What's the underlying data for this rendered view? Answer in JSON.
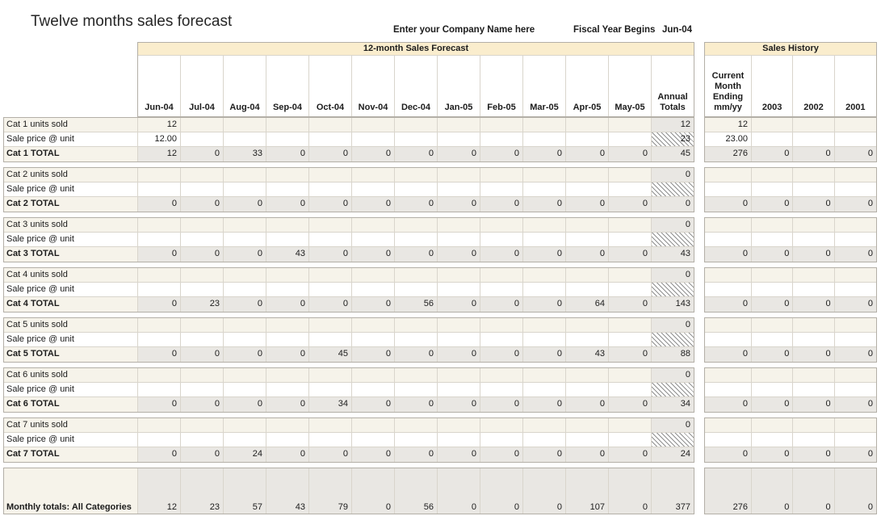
{
  "page": {
    "title": "Twelve months sales forecast"
  },
  "header": {
    "company_prompt": "Enter your Company Name here",
    "fiscal_label": "Fiscal Year Begins",
    "fiscal_value": "Jun-04"
  },
  "forecast": {
    "band_title": "12-month Sales Forecast",
    "months": [
      "Jun-04",
      "Jul-04",
      "Aug-04",
      "Sep-04",
      "Oct-04",
      "Nov-04",
      "Dec-04",
      "Jan-05",
      "Feb-05",
      "Mar-05",
      "Apr-05",
      "May-05"
    ],
    "annual_header": "Annual\nTotals"
  },
  "history": {
    "band_title": "Sales History",
    "col0_header": "Current\nMonth\nEnding\nmm/yy",
    "year_headers": [
      "2003",
      "2002",
      "2001"
    ]
  },
  "categories": [
    {
      "units_label": "Cat 1 units sold",
      "price_label": "Sale price @ unit",
      "total_label": "Cat 1 TOTAL",
      "units_months": [
        "12",
        "",
        "",
        "",
        "",
        "",
        "",
        "",
        "",
        "",
        "",
        ""
      ],
      "units_annual": "12",
      "price_months": [
        "12.00",
        "",
        "",
        "",
        "",
        "",
        "",
        "",
        "",
        "",
        "",
        ""
      ],
      "price_annual": "23",
      "total_months": [
        "12",
        "0",
        "33",
        "0",
        "0",
        "0",
        "0",
        "0",
        "0",
        "0",
        "0",
        "0"
      ],
      "total_annual": "45",
      "has_comment": true,
      "history_units": "12",
      "history_price": "23.00",
      "history_totals": [
        "276",
        "0",
        "0",
        "0"
      ]
    },
    {
      "units_label": "Cat 2 units sold",
      "price_label": "Sale price @ unit",
      "total_label": "Cat 2 TOTAL",
      "units_months": [
        "",
        "",
        "",
        "",
        "",
        "",
        "",
        "",
        "",
        "",
        "",
        ""
      ],
      "units_annual": "0",
      "price_months": [
        "",
        "",
        "",
        "",
        "",
        "",
        "",
        "",
        "",
        "",
        "",
        ""
      ],
      "price_annual": "",
      "total_months": [
        "0",
        "0",
        "0",
        "0",
        "0",
        "0",
        "0",
        "0",
        "0",
        "0",
        "0",
        "0"
      ],
      "total_annual": "0",
      "has_comment": false,
      "history_units": "",
      "history_price": "",
      "history_totals": [
        "0",
        "0",
        "0",
        "0"
      ]
    },
    {
      "units_label": "Cat 3 units sold",
      "price_label": "Sale price @ unit",
      "total_label": "Cat 3 TOTAL",
      "units_months": [
        "",
        "",
        "",
        "",
        "",
        "",
        "",
        "",
        "",
        "",
        "",
        ""
      ],
      "units_annual": "0",
      "price_months": [
        "",
        "",
        "",
        "",
        "",
        "",
        "",
        "",
        "",
        "",
        "",
        ""
      ],
      "price_annual": "",
      "total_months": [
        "0",
        "0",
        "0",
        "43",
        "0",
        "0",
        "0",
        "0",
        "0",
        "0",
        "0",
        "0"
      ],
      "total_annual": "43",
      "has_comment": false,
      "history_units": "",
      "history_price": "",
      "history_totals": [
        "0",
        "0",
        "0",
        "0"
      ]
    },
    {
      "units_label": "Cat 4 units sold",
      "price_label": "Sale price @ unit",
      "total_label": "Cat 4 TOTAL",
      "units_months": [
        "",
        "",
        "",
        "",
        "",
        "",
        "",
        "",
        "",
        "",
        "",
        ""
      ],
      "units_annual": "0",
      "price_months": [
        "",
        "",
        "",
        "",
        "",
        "",
        "",
        "",
        "",
        "",
        "",
        ""
      ],
      "price_annual": "",
      "total_months": [
        "0",
        "23",
        "0",
        "0",
        "0",
        "0",
        "56",
        "0",
        "0",
        "0",
        "64",
        "0"
      ],
      "total_annual": "143",
      "has_comment": false,
      "history_units": "",
      "history_price": "",
      "history_totals": [
        "0",
        "0",
        "0",
        "0"
      ]
    },
    {
      "units_label": "Cat 5 units sold",
      "price_label": "Sale price @ unit",
      "total_label": "Cat 5 TOTAL",
      "units_months": [
        "",
        "",
        "",
        "",
        "",
        "",
        "",
        "",
        "",
        "",
        "",
        ""
      ],
      "units_annual": "0",
      "price_months": [
        "",
        "",
        "",
        "",
        "",
        "",
        "",
        "",
        "",
        "",
        "",
        ""
      ],
      "price_annual": "",
      "total_months": [
        "0",
        "0",
        "0",
        "0",
        "45",
        "0",
        "0",
        "0",
        "0",
        "0",
        "43",
        "0"
      ],
      "total_annual": "88",
      "has_comment": false,
      "history_units": "",
      "history_price": "",
      "history_totals": [
        "0",
        "0",
        "0",
        "0"
      ]
    },
    {
      "units_label": "Cat 6 units sold",
      "price_label": "Sale price @ unit",
      "total_label": "Cat 6 TOTAL",
      "units_months": [
        "",
        "",
        "",
        "",
        "",
        "",
        "",
        "",
        "",
        "",
        "",
        ""
      ],
      "units_annual": "0",
      "price_months": [
        "",
        "",
        "",
        "",
        "",
        "",
        "",
        "",
        "",
        "",
        "",
        ""
      ],
      "price_annual": "",
      "total_months": [
        "0",
        "0",
        "0",
        "0",
        "34",
        "0",
        "0",
        "0",
        "0",
        "0",
        "0",
        "0"
      ],
      "total_annual": "34",
      "has_comment": false,
      "history_units": "",
      "history_price": "",
      "history_totals": [
        "0",
        "0",
        "0",
        "0"
      ]
    },
    {
      "units_label": "Cat 7 units sold",
      "price_label": "Sale price @ unit",
      "total_label": "Cat 7 TOTAL",
      "units_months": [
        "",
        "",
        "",
        "",
        "",
        "",
        "",
        "",
        "",
        "",
        "",
        ""
      ],
      "units_annual": "0",
      "price_months": [
        "",
        "",
        "",
        "",
        "",
        "",
        "",
        "",
        "",
        "",
        "",
        ""
      ],
      "price_annual": "",
      "total_months": [
        "0",
        "0",
        "24",
        "0",
        "0",
        "0",
        "0",
        "0",
        "0",
        "0",
        "0",
        "0"
      ],
      "total_annual": "24",
      "has_comment": false,
      "history_units": "",
      "history_price": "",
      "history_totals": [
        "0",
        "0",
        "0",
        "0"
      ]
    }
  ],
  "grand": {
    "label": "Monthly totals: All Categories",
    "months": [
      "12",
      "23",
      "57",
      "43",
      "79",
      "0",
      "56",
      "0",
      "0",
      "0",
      "107",
      "0"
    ],
    "annual": "377",
    "history": [
      "276",
      "0",
      "0",
      "0"
    ]
  },
  "colors": {
    "tan": "#FAEDCD",
    "cream": "#F6F3EA",
    "gray": "#E9E7E3",
    "border": "#D9D5CC",
    "outer": "#B3AFA7",
    "flag": "#FF0000"
  }
}
